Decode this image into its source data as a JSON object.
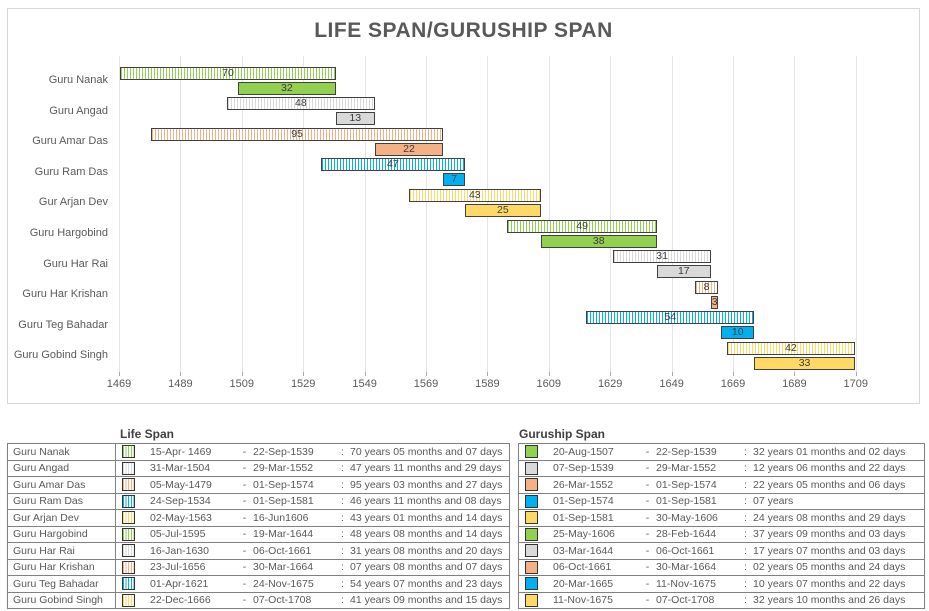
{
  "chart_data": {
    "type": "bar",
    "variant": "horizontal-gantt",
    "title": "LIFE SPAN/GURUSHIP SPAN",
    "axis": {
      "min": 1469,
      "max": 1709,
      "step": 20
    },
    "x_ticks": [
      1469,
      1489,
      1509,
      1529,
      1549,
      1569,
      1589,
      1609,
      1629,
      1649,
      1669,
      1689,
      1709
    ],
    "categories": [
      "Guru Nanak",
      "Guru Angad",
      "Guru Amar Das",
      "Guru Ram Das",
      "Gur Arjan Dev",
      "Guru Hargobind",
      "Guru Har Rai",
      "Guru Har Krishan",
      "Guru Teg Bahadar",
      "Guru Gobind Singh"
    ],
    "palette": [
      "#92D050",
      "#D9D9D9",
      "#F4B183",
      "#00B0F0",
      "#FFD966"
    ],
    "bar_border_color": "#404040",
    "series": [
      {
        "name": "Life Span",
        "style": "hatched",
        "bars": [
          {
            "start": 1469.29,
            "end": 1539.73,
            "label": "70"
          },
          {
            "start": 1504.25,
            "end": 1552.24,
            "label": "48"
          },
          {
            "start": 1479.34,
            "end": 1574.67,
            "label": "95"
          },
          {
            "start": 1534.73,
            "end": 1581.67,
            "label": "47"
          },
          {
            "start": 1563.33,
            "end": 1606.46,
            "label": "43"
          },
          {
            "start": 1595.51,
            "end": 1644.21,
            "label": "49"
          },
          {
            "start": 1630.04,
            "end": 1661.77,
            "label": "31"
          },
          {
            "start": 1656.56,
            "end": 1664.25,
            "label": "8"
          },
          {
            "start": 1621.25,
            "end": 1675.9,
            "label": "54"
          },
          {
            "start": 1666.97,
            "end": 1708.77,
            "label": "42"
          }
        ]
      },
      {
        "name": "Guruship Span",
        "style": "solid",
        "bars": [
          {
            "start": 1507.64,
            "end": 1539.73,
            "label": "32"
          },
          {
            "start": 1539.69,
            "end": 1552.24,
            "label": "13"
          },
          {
            "start": 1552.23,
            "end": 1574.67,
            "label": "22"
          },
          {
            "start": 1574.67,
            "end": 1581.67,
            "label": "7"
          },
          {
            "start": 1581.67,
            "end": 1606.41,
            "label": "25"
          },
          {
            "start": 1606.4,
            "end": 1644.16,
            "label": "38"
          },
          {
            "start": 1644.17,
            "end": 1661.77,
            "label": "17"
          },
          {
            "start": 1661.77,
            "end": 1664.25,
            "label": "3"
          },
          {
            "start": 1665.22,
            "end": 1675.86,
            "label": "10"
          },
          {
            "start": 1675.86,
            "end": 1708.77,
            "label": "33"
          }
        ]
      }
    ]
  },
  "table": {
    "life_header": "Life Span",
    "guruship_header": "Guruship Span",
    "separator": "-",
    "colon": ":",
    "rows": [
      {
        "name": "Guru Nanak",
        "life": {
          "start": "15-Apr- 1469",
          "end": "22-Sep-1539",
          "duration": "70 years 05 months and 07 days"
        },
        "guruship": {
          "start": "20-Aug-1507",
          "end": "22-Sep-1539",
          "duration": "32 years 01 months and 02 days"
        }
      },
      {
        "name": "Guru Angad",
        "life": {
          "start": "31-Mar-1504",
          "end": "29-Mar-1552",
          "duration": "47 years 11 months and 29 days"
        },
        "guruship": {
          "start": "07-Sep-1539",
          "end": "29-Mar-1552",
          "duration": "12 years 06 months and 22 days"
        }
      },
      {
        "name": "Guru Amar Das",
        "life": {
          "start": "05-May-1479",
          "end": "01-Sep-1574",
          "duration": "95 years 03 months and 27 days"
        },
        "guruship": {
          "start": "26-Mar-1552",
          "end": "01-Sep-1574",
          "duration": "22 years 05 months and 06 days"
        }
      },
      {
        "name": "Guru Ram Das",
        "life": {
          "start": "24-Sep-1534",
          "end": "01-Sep-1581",
          "duration": "46 years 11 months and 08 days"
        },
        "guruship": {
          "start": "01-Sep-1574",
          "end": "01-Sep-1581",
          "duration": "07 years"
        }
      },
      {
        "name": "Gur Arjan Dev",
        "life": {
          "start": "02-May-1563",
          "end": "16-Jun1606",
          "duration": "43 years 01 months and 14 days"
        },
        "guruship": {
          "start": "01-Sep-1581",
          "end": "30-May-1606",
          "duration": "24 years 08 months and 29 days"
        }
      },
      {
        "name": "Guru Hargobind",
        "life": {
          "start": "05-Jul-1595",
          "end": "19-Mar-1644",
          "duration": "48 years 08 months and 14 days"
        },
        "guruship": {
          "start": "25-May-1606",
          "end": "28-Feb-1644",
          "duration": "37 years 09 months and 03 days"
        }
      },
      {
        "name": "Guru Har Rai",
        "life": {
          "start": "16-Jan-1630",
          "end": "06-Oct-1661",
          "duration": "31 years 08 months and 20 days"
        },
        "guruship": {
          "start": "03-Mar-1644",
          "end": "06-Oct-1661",
          "duration": "17 years 07 months and 03 days"
        }
      },
      {
        "name": "Guru Har Krishan",
        "life": {
          "start": "23-Jul-1656",
          "end": "30-Mar-1664",
          "duration": "07 years 08 months and 07 days"
        },
        "guruship": {
          "start": "06-Oct-1661",
          "end": "30-Mar-1664",
          "duration": "02 years 05 months and 24 days"
        }
      },
      {
        "name": "Guru Teg Bahadar",
        "life": {
          "start": "01-Apr-1621",
          "end": "24-Nov-1675",
          "duration": "54 years 07 months and 23 days"
        },
        "guruship": {
          "start": "20-Mar-1665",
          "end": "11-Nov-1675",
          "duration": "10 years 07 months and 22 days"
        }
      },
      {
        "name": "Guru Gobind Singh",
        "life": {
          "start": "22-Dec-1666",
          "end": "07-Oct-1708",
          "duration": "41 years 09 months and 15 days"
        },
        "guruship": {
          "start": "11-Nov-1675",
          "end": "07-Oct-1708",
          "duration": "32 years 10 months and 26 days"
        }
      }
    ]
  }
}
